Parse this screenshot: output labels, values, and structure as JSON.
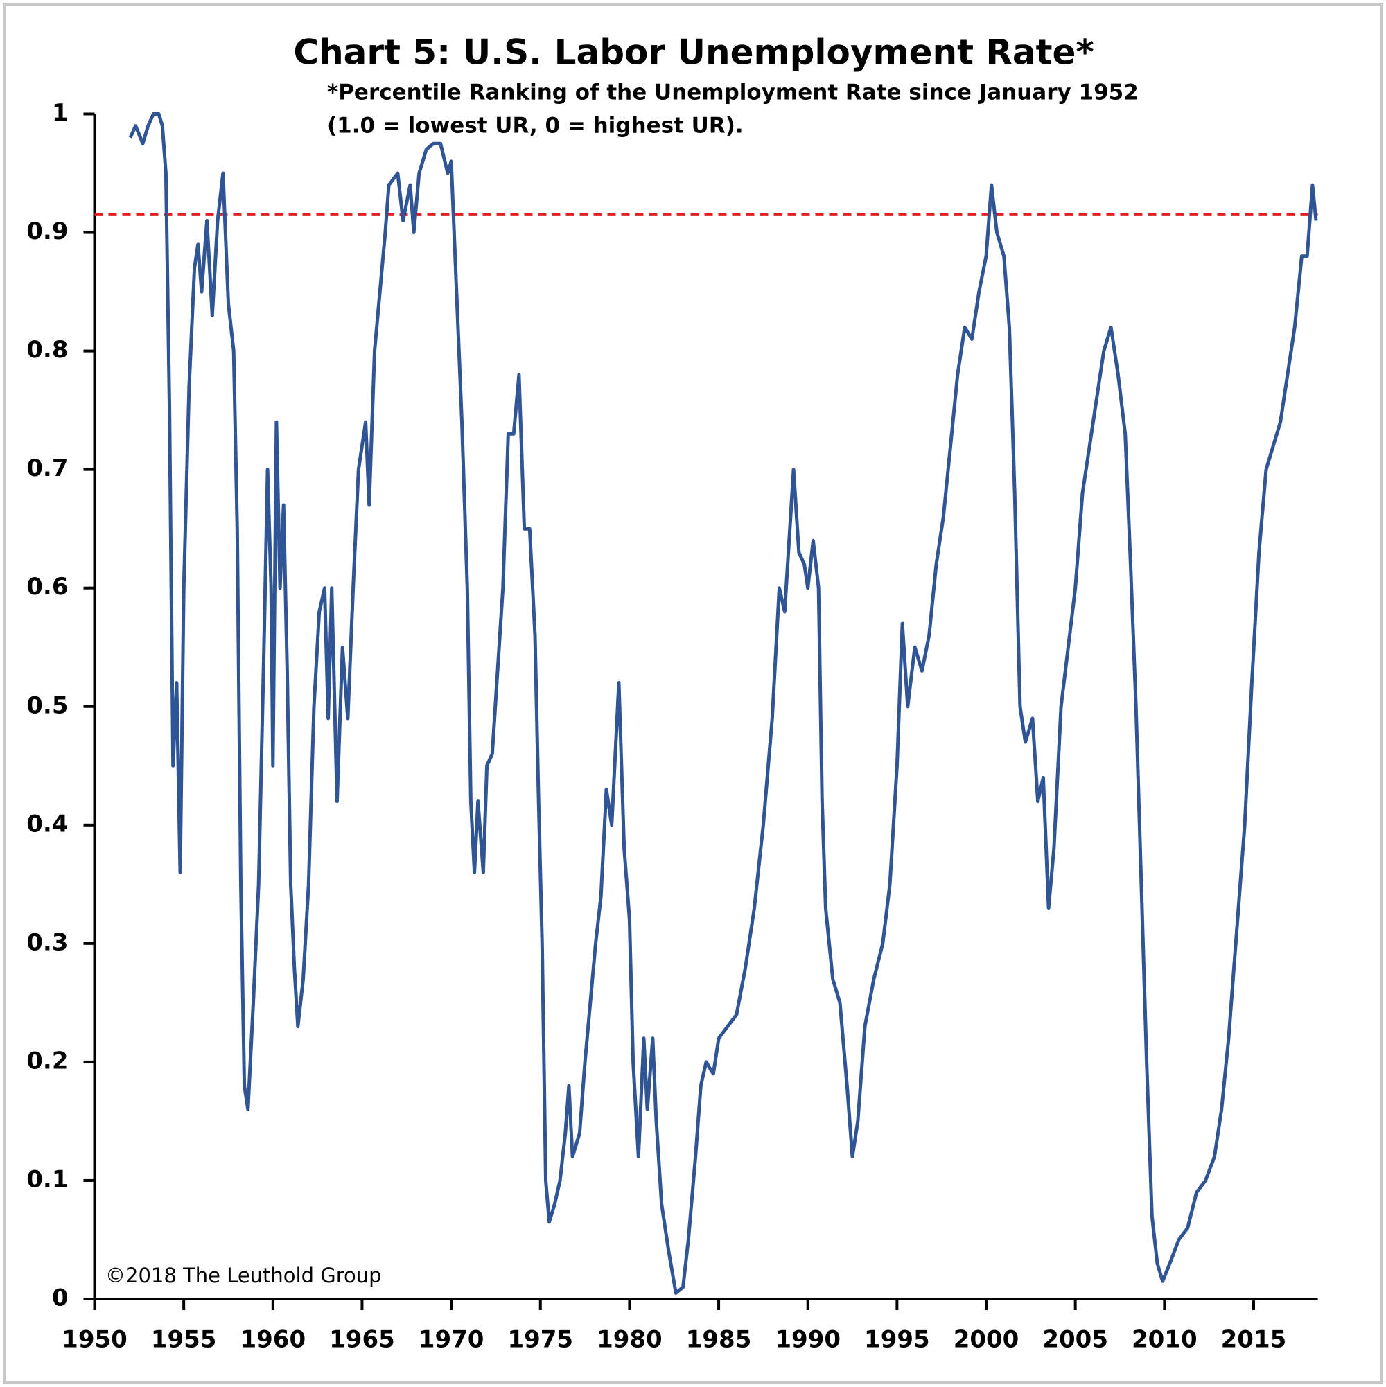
{
  "chart_data": {
    "type": "line",
    "title": "Chart 5: U.S. Labor Unemployment Rate*",
    "subtitle": [
      "*Percentile Ranking of the Unemployment Rate since January 1952",
      "(1.0 = lowest UR, 0 = highest UR)."
    ],
    "annotation": "©2018 The Leuthold Group",
    "x": [
      1952.0,
      1952.3,
      1952.7,
      1953.0,
      1953.3,
      1953.6,
      1953.8,
      1954.0,
      1954.2,
      1954.4,
      1954.6,
      1954.8,
      1955.0,
      1955.3,
      1955.6,
      1955.8,
      1956.0,
      1956.3,
      1956.6,
      1956.9,
      1957.2,
      1957.5,
      1957.8,
      1958.0,
      1958.2,
      1958.4,
      1958.6,
      1958.9,
      1959.2,
      1959.5,
      1959.7,
      1959.9,
      1960.0,
      1960.2,
      1960.4,
      1960.6,
      1960.8,
      1961.0,
      1961.2,
      1961.4,
      1961.7,
      1962.0,
      1962.3,
      1962.6,
      1962.9,
      1963.1,
      1963.3,
      1963.6,
      1963.9,
      1964.2,
      1964.5,
      1964.8,
      1965.2,
      1965.4,
      1965.7,
      1966.0,
      1966.3,
      1966.5,
      1967.0,
      1967.3,
      1967.7,
      1967.9,
      1968.2,
      1968.6,
      1969.0,
      1969.4,
      1969.8,
      1970.0,
      1970.3,
      1970.6,
      1970.9,
      1971.1,
      1971.3,
      1971.5,
      1971.8,
      1972.0,
      1972.3,
      1972.6,
      1972.9,
      1973.2,
      1973.5,
      1973.8,
      1974.1,
      1974.4,
      1974.7,
      1974.9,
      1975.1,
      1975.3,
      1975.5,
      1975.8,
      1976.1,
      1976.4,
      1976.6,
      1976.8,
      1977.2,
      1977.5,
      1977.8,
      1978.1,
      1978.4,
      1978.7,
      1979.0,
      1979.4,
      1979.7,
      1980.0,
      1980.2,
      1980.5,
      1980.8,
      1981.0,
      1981.3,
      1981.5,
      1981.8,
      1982.2,
      1982.6,
      1983.0,
      1983.3,
      1983.7,
      1984.0,
      1984.3,
      1984.7,
      1985.0,
      1985.5,
      1986.0,
      1986.5,
      1987.0,
      1987.5,
      1988.0,
      1988.4,
      1988.7,
      1989.2,
      1989.5,
      1989.8,
      1990.0,
      1990.3,
      1990.6,
      1990.8,
      1991.0,
      1991.4,
      1991.8,
      1992.2,
      1992.5,
      1992.8,
      1993.2,
      1993.7,
      1994.2,
      1994.6,
      1995.0,
      1995.3,
      1995.6,
      1996.0,
      1996.4,
      1996.8,
      1997.2,
      1997.6,
      1998.0,
      1998.4,
      1998.8,
      1999.2,
      1999.6,
      2000.0,
      2000.3,
      2000.6,
      2001.0,
      2001.3,
      2001.6,
      2001.9,
      2002.2,
      2002.6,
      2002.9,
      2003.2,
      2003.5,
      2003.8,
      2004.2,
      2004.6,
      2005.0,
      2005.4,
      2005.8,
      2006.2,
      2006.6,
      2007.0,
      2007.4,
      2007.8,
      2008.1,
      2008.4,
      2008.7,
      2009.0,
      2009.3,
      2009.6,
      2009.9,
      2010.3,
      2010.8,
      2011.3,
      2011.8,
      2012.3,
      2012.8,
      2013.2,
      2013.6,
      2014.0,
      2014.5,
      2014.9,
      2015.3,
      2015.7,
      2016.1,
      2016.5,
      2016.9,
      2017.3,
      2017.7,
      2018.0,
      2018.3,
      2018.5
    ],
    "series": [
      {
        "color": "#2f5597",
        "values": [
          0.98,
          0.99,
          0.975,
          0.99,
          1.0,
          1.0,
          0.99,
          0.95,
          0.75,
          0.45,
          0.52,
          0.36,
          0.6,
          0.77,
          0.87,
          0.89,
          0.85,
          0.91,
          0.83,
          0.91,
          0.95,
          0.84,
          0.8,
          0.65,
          0.35,
          0.18,
          0.16,
          0.25,
          0.35,
          0.55,
          0.7,
          0.6,
          0.45,
          0.74,
          0.6,
          0.67,
          0.53,
          0.35,
          0.28,
          0.23,
          0.27,
          0.35,
          0.5,
          0.58,
          0.6,
          0.49,
          0.6,
          0.42,
          0.55,
          0.49,
          0.6,
          0.7,
          0.74,
          0.67,
          0.8,
          0.85,
          0.9,
          0.94,
          0.95,
          0.91,
          0.94,
          0.9,
          0.95,
          0.97,
          0.975,
          0.975,
          0.95,
          0.96,
          0.85,
          0.74,
          0.6,
          0.42,
          0.36,
          0.42,
          0.36,
          0.45,
          0.46,
          0.53,
          0.6,
          0.73,
          0.73,
          0.78,
          0.65,
          0.65,
          0.56,
          0.42,
          0.3,
          0.1,
          0.065,
          0.08,
          0.1,
          0.14,
          0.18,
          0.12,
          0.14,
          0.2,
          0.25,
          0.3,
          0.34,
          0.43,
          0.4,
          0.52,
          0.38,
          0.32,
          0.2,
          0.12,
          0.22,
          0.16,
          0.22,
          0.15,
          0.08,
          0.04,
          0.005,
          0.01,
          0.05,
          0.12,
          0.18,
          0.2,
          0.19,
          0.22,
          0.23,
          0.24,
          0.28,
          0.33,
          0.4,
          0.49,
          0.6,
          0.58,
          0.7,
          0.63,
          0.62,
          0.6,
          0.64,
          0.6,
          0.42,
          0.33,
          0.27,
          0.25,
          0.18,
          0.12,
          0.15,
          0.23,
          0.27,
          0.3,
          0.35,
          0.45,
          0.57,
          0.5,
          0.55,
          0.53,
          0.56,
          0.62,
          0.66,
          0.72,
          0.78,
          0.82,
          0.81,
          0.85,
          0.88,
          0.94,
          0.9,
          0.88,
          0.82,
          0.68,
          0.5,
          0.47,
          0.49,
          0.42,
          0.44,
          0.33,
          0.38,
          0.5,
          0.55,
          0.6,
          0.68,
          0.72,
          0.76,
          0.8,
          0.82,
          0.78,
          0.73,
          0.62,
          0.5,
          0.35,
          0.2,
          0.07,
          0.03,
          0.015,
          0.03,
          0.05,
          0.06,
          0.09,
          0.1,
          0.12,
          0.16,
          0.22,
          0.3,
          0.4,
          0.52,
          0.63,
          0.7,
          0.72,
          0.74,
          0.78,
          0.82,
          0.88,
          0.88,
          0.94,
          0.91
        ]
      }
    ],
    "reference_line": {
      "value": 0.915,
      "color": "#e02020"
    },
    "xlim": [
      1950,
      2018.6
    ],
    "xticks": [
      1950,
      1955,
      1960,
      1965,
      1970,
      1975,
      1980,
      1985,
      1990,
      1995,
      2000,
      2005,
      2010,
      2015
    ],
    "ylim": [
      0,
      1
    ],
    "yticks": [
      0,
      0.1,
      0.2,
      0.3,
      0.4,
      0.5,
      0.6,
      0.7,
      0.8,
      0.9,
      1
    ]
  }
}
